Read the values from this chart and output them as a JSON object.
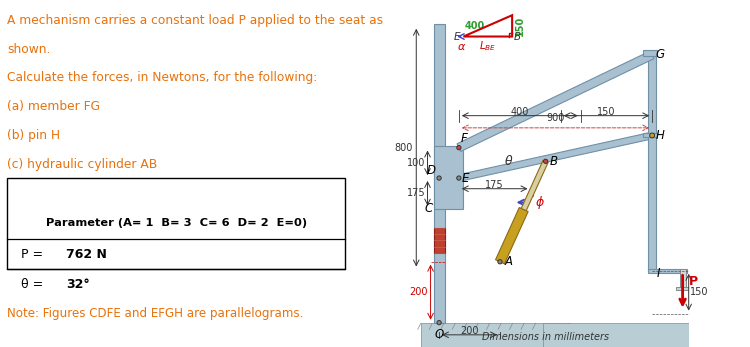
{
  "text_color_orange": "#E8720C",
  "text_color_green": "#2E9E2E",
  "text_color_red": "#CC0000",
  "text_color_black": "#000000",
  "text_color_blue": "#4444CC",
  "bg_color": "#FFFFFF",
  "structure_color": "#A8C0D0",
  "structure_edge": "#7090A8",
  "hydraulic_color": "#C8A020",
  "hydraulic_rod_color": "#D8D0A0",
  "ground_color": "#C0D8E0",
  "left_lines": [
    "A mechanism carries a constant load P applied to the seat as",
    "shown.",
    "Calculate the forces, in Newtons, for the following:",
    "(a) member FG",
    "(b) pin H",
    "(c) hydraulic cylinder AB"
  ],
  "table_header": "Parameter (A= 1  B= 3  C= 6  D= 2  E=0)",
  "row1_label": "P = ",
  "row1_value": "762 N",
  "row2_label": "θ = ",
  "row2_value": "32°",
  "note": "Note: Figures CDFE and EFGH are parallelograms.",
  "dim_label": "Dimensions in millimeters"
}
